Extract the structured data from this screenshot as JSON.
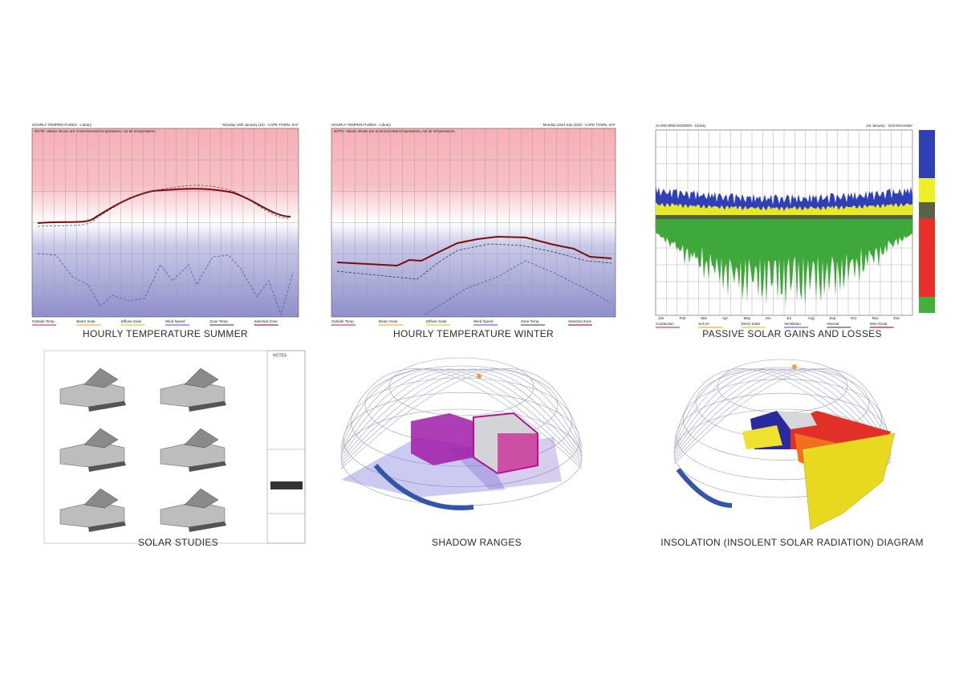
{
  "panels": [
    {
      "caption": "HOURLY TEMPERATURE SUMMER",
      "header": "HOURLY TEMPERATURES - Library",
      "subheader": "Monday 15th January (15) - CAPE TOWN, ZAF",
      "note": "NOTE: Values shown are environmental temperatures, not air temperatures.",
      "legend": [
        "Outside Temp.",
        "Beam Solar",
        "Diffuse Solar",
        "Wind Speed",
        "Zone Temp.",
        "Selected Zone"
      ]
    },
    {
      "caption": "HOURLY TEMPERATURE WINTER",
      "header": "HOURLY TEMPERATURES - Library",
      "subheader": "Monday 22nd July (203) - CAPE TOWN, ZAF",
      "note": "NOTE: Values shown are environmental temperatures, not air temperatures.",
      "legend": [
        "Outside Temp.",
        "Beam Solar",
        "Diffuse Solar",
        "Wind Speed",
        "Zone Temp.",
        "Selected Zone"
      ]
    },
    {
      "caption": "PASSIVE SOLAR GAINS AND LOSSES",
      "header": "GAINS BREAKDOWN - Library",
      "subheader": "1st January - 31st December",
      "months": [
        "Jan",
        "Feb",
        "Mar",
        "Apr",
        "May",
        "Jun",
        "Jul",
        "Aug",
        "Sep",
        "Oct",
        "Nov",
        "Dec"
      ],
      "legend": [
        "Conduction",
        "Sol-Air",
        "Direct Solar",
        "Ventilation",
        "Internal",
        "Inter-Zonal"
      ]
    },
    {
      "caption": "SOLAR STUDIES",
      "notes_title": "NOTES"
    },
    {
      "caption": "SHADOW RANGES"
    },
    {
      "caption": "INSOLATION (INSOLENT SOLAR RADIATION) DIAGRAM"
    }
  ]
}
